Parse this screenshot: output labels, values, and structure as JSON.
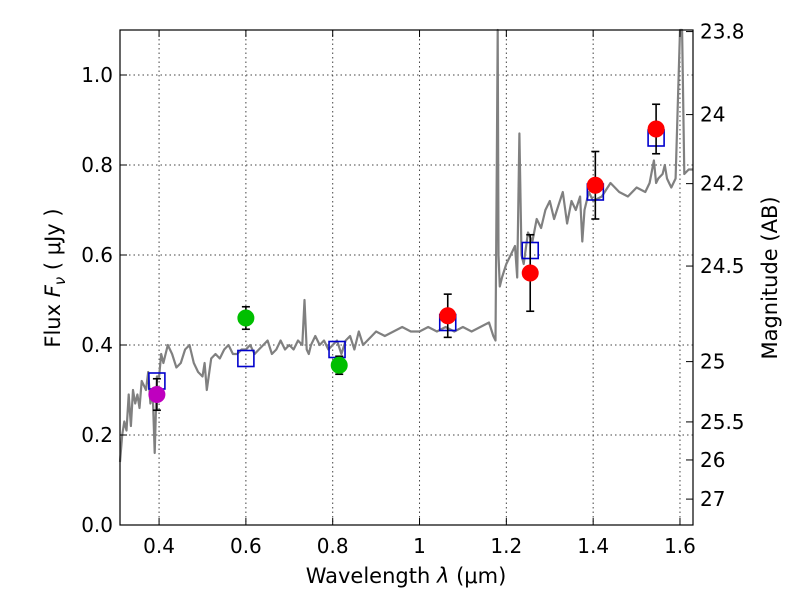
{
  "chart_data": {
    "type": "scatter",
    "title": "",
    "xlabel_prefix": "Wavelength  ",
    "xlabel_symbol": "λ",
    "xlabel_unit": " (μm)",
    "ylabel_prefix": "Flux  ",
    "ylabel_symbol": "F",
    "ylabel_sub": "ν",
    "ylabel_unit": "  ( μJy )",
    "y2label": "Magnitude (AB)",
    "xlim": [
      0.31,
      1.63
    ],
    "ylim": [
      0.0,
      1.1
    ],
    "grid": true,
    "x_ticks": [
      {
        "value": 0.4,
        "label": "0.4"
      },
      {
        "value": 0.6,
        "label": "0.6"
      },
      {
        "value": 0.8,
        "label": "0.8"
      },
      {
        "value": 1.0,
        "label": "1"
      },
      {
        "value": 1.2,
        "label": "1.2"
      },
      {
        "value": 1.4,
        "label": "1.4"
      },
      {
        "value": 1.6,
        "label": "1.6"
      }
    ],
    "y_ticks": [
      {
        "value": 0.0,
        "label": "0.0"
      },
      {
        "value": 0.2,
        "label": "0.2"
      },
      {
        "value": 0.4,
        "label": "0.4"
      },
      {
        "value": 0.6,
        "label": "0.6"
      },
      {
        "value": 0.8,
        "label": "0.8"
      },
      {
        "value": 1.0,
        "label": "1.0"
      }
    ],
    "mag_ticks": [
      {
        "mag": 23.8,
        "label": "23.8"
      },
      {
        "mag": 24.0,
        "label": "24"
      },
      {
        "mag": 24.2,
        "label": "24.2"
      },
      {
        "mag": 24.5,
        "label": "24.5"
      },
      {
        "mag": 25.0,
        "label": "25"
      },
      {
        "mag": 25.5,
        "label": "25.5"
      },
      {
        "mag": 26.0,
        "label": "26"
      },
      {
        "mag": 27.0,
        "label": "27"
      }
    ],
    "sed_model": {
      "name": "model spectrum",
      "color": "#808080",
      "x": [
        0.31,
        0.315,
        0.32,
        0.325,
        0.33,
        0.335,
        0.34,
        0.345,
        0.35,
        0.355,
        0.36,
        0.365,
        0.37,
        0.375,
        0.38,
        0.385,
        0.39,
        0.395,
        0.4,
        0.405,
        0.41,
        0.42,
        0.43,
        0.44,
        0.45,
        0.46,
        0.47,
        0.48,
        0.49,
        0.5,
        0.505,
        0.51,
        0.52,
        0.53,
        0.54,
        0.55,
        0.56,
        0.57,
        0.58,
        0.59,
        0.6,
        0.61,
        0.62,
        0.63,
        0.64,
        0.65,
        0.66,
        0.67,
        0.68,
        0.69,
        0.7,
        0.71,
        0.72,
        0.73,
        0.735,
        0.74,
        0.745,
        0.75,
        0.76,
        0.77,
        0.78,
        0.79,
        0.8,
        0.81,
        0.82,
        0.83,
        0.84,
        0.85,
        0.86,
        0.87,
        0.88,
        0.89,
        0.9,
        0.92,
        0.94,
        0.96,
        0.98,
        1.0,
        1.02,
        1.04,
        1.06,
        1.08,
        1.1,
        1.12,
        1.14,
        1.16,
        1.17,
        1.175,
        1.178,
        1.18,
        1.182,
        1.185,
        1.19,
        1.2,
        1.21,
        1.22,
        1.225,
        1.23,
        1.235,
        1.24,
        1.25,
        1.26,
        1.27,
        1.28,
        1.29,
        1.3,
        1.31,
        1.32,
        1.33,
        1.34,
        1.35,
        1.36,
        1.37,
        1.375,
        1.38,
        1.39,
        1.4,
        1.42,
        1.44,
        1.46,
        1.48,
        1.5,
        1.52,
        1.53,
        1.54,
        1.545,
        1.55,
        1.56,
        1.565,
        1.57,
        1.575,
        1.58,
        1.59,
        1.6,
        1.605,
        1.61,
        1.62,
        1.63
      ],
      "y": [
        0.14,
        0.2,
        0.23,
        0.21,
        0.29,
        0.22,
        0.3,
        0.27,
        0.29,
        0.26,
        0.32,
        0.31,
        0.3,
        0.34,
        0.27,
        0.3,
        0.16,
        0.33,
        0.33,
        0.38,
        0.36,
        0.4,
        0.38,
        0.35,
        0.36,
        0.39,
        0.4,
        0.36,
        0.34,
        0.33,
        0.36,
        0.3,
        0.37,
        0.38,
        0.37,
        0.39,
        0.4,
        0.38,
        0.38,
        0.39,
        0.39,
        0.4,
        0.38,
        0.39,
        0.4,
        0.41,
        0.38,
        0.39,
        0.41,
        0.39,
        0.4,
        0.39,
        0.41,
        0.4,
        0.5,
        0.39,
        0.38,
        0.4,
        0.42,
        0.4,
        0.41,
        0.39,
        0.4,
        0.41,
        0.38,
        0.41,
        0.42,
        0.39,
        0.43,
        0.4,
        0.41,
        0.42,
        0.43,
        0.42,
        0.43,
        0.44,
        0.43,
        0.43,
        0.44,
        0.43,
        0.44,
        0.43,
        0.44,
        0.43,
        0.44,
        0.45,
        0.42,
        0.41,
        0.8,
        1.15,
        0.6,
        0.53,
        0.55,
        0.58,
        0.6,
        0.62,
        0.55,
        0.87,
        0.6,
        0.58,
        0.65,
        0.63,
        0.68,
        0.66,
        0.7,
        0.72,
        0.68,
        0.71,
        0.74,
        0.67,
        0.72,
        0.7,
        0.73,
        0.63,
        0.7,
        0.74,
        0.72,
        0.73,
        0.76,
        0.74,
        0.73,
        0.75,
        0.74,
        0.76,
        0.81,
        0.76,
        0.77,
        0.78,
        0.8,
        0.77,
        0.76,
        0.75,
        0.77,
        1.15,
        1.15,
        0.78,
        0.79,
        0.79
      ]
    },
    "model_photometry": {
      "name": "model photometry",
      "marker": "square",
      "color": "#0000cc",
      "points": [
        {
          "x": 0.395,
          "y": 0.32
        },
        {
          "x": 0.6,
          "y": 0.37
        },
        {
          "x": 0.81,
          "y": 0.39
        },
        {
          "x": 1.065,
          "y": 0.45
        },
        {
          "x": 1.255,
          "y": 0.61
        },
        {
          "x": 1.405,
          "y": 0.74
        },
        {
          "x": 1.545,
          "y": 0.86
        }
      ]
    },
    "observed_photometry": {
      "name": "observed photometry",
      "marker": "circle",
      "points": [
        {
          "x": 0.395,
          "y": 0.29,
          "err": 0.035,
          "color": "#bf00bf"
        },
        {
          "x": 0.6,
          "y": 0.46,
          "err": 0.025,
          "color": "#00bf00"
        },
        {
          "x": 0.815,
          "y": 0.355,
          "err": 0.02,
          "color": "#00bf00"
        },
        {
          "x": 1.065,
          "y": 0.465,
          "err": 0.048,
          "color": "#ff0000"
        },
        {
          "x": 1.255,
          "y": 0.56,
          "err": 0.085,
          "color": "#ff0000"
        },
        {
          "x": 1.405,
          "y": 0.755,
          "err": 0.075,
          "color": "#ff0000"
        },
        {
          "x": 1.545,
          "y": 0.88,
          "err": 0.055,
          "color": "#ff0000"
        }
      ]
    }
  }
}
